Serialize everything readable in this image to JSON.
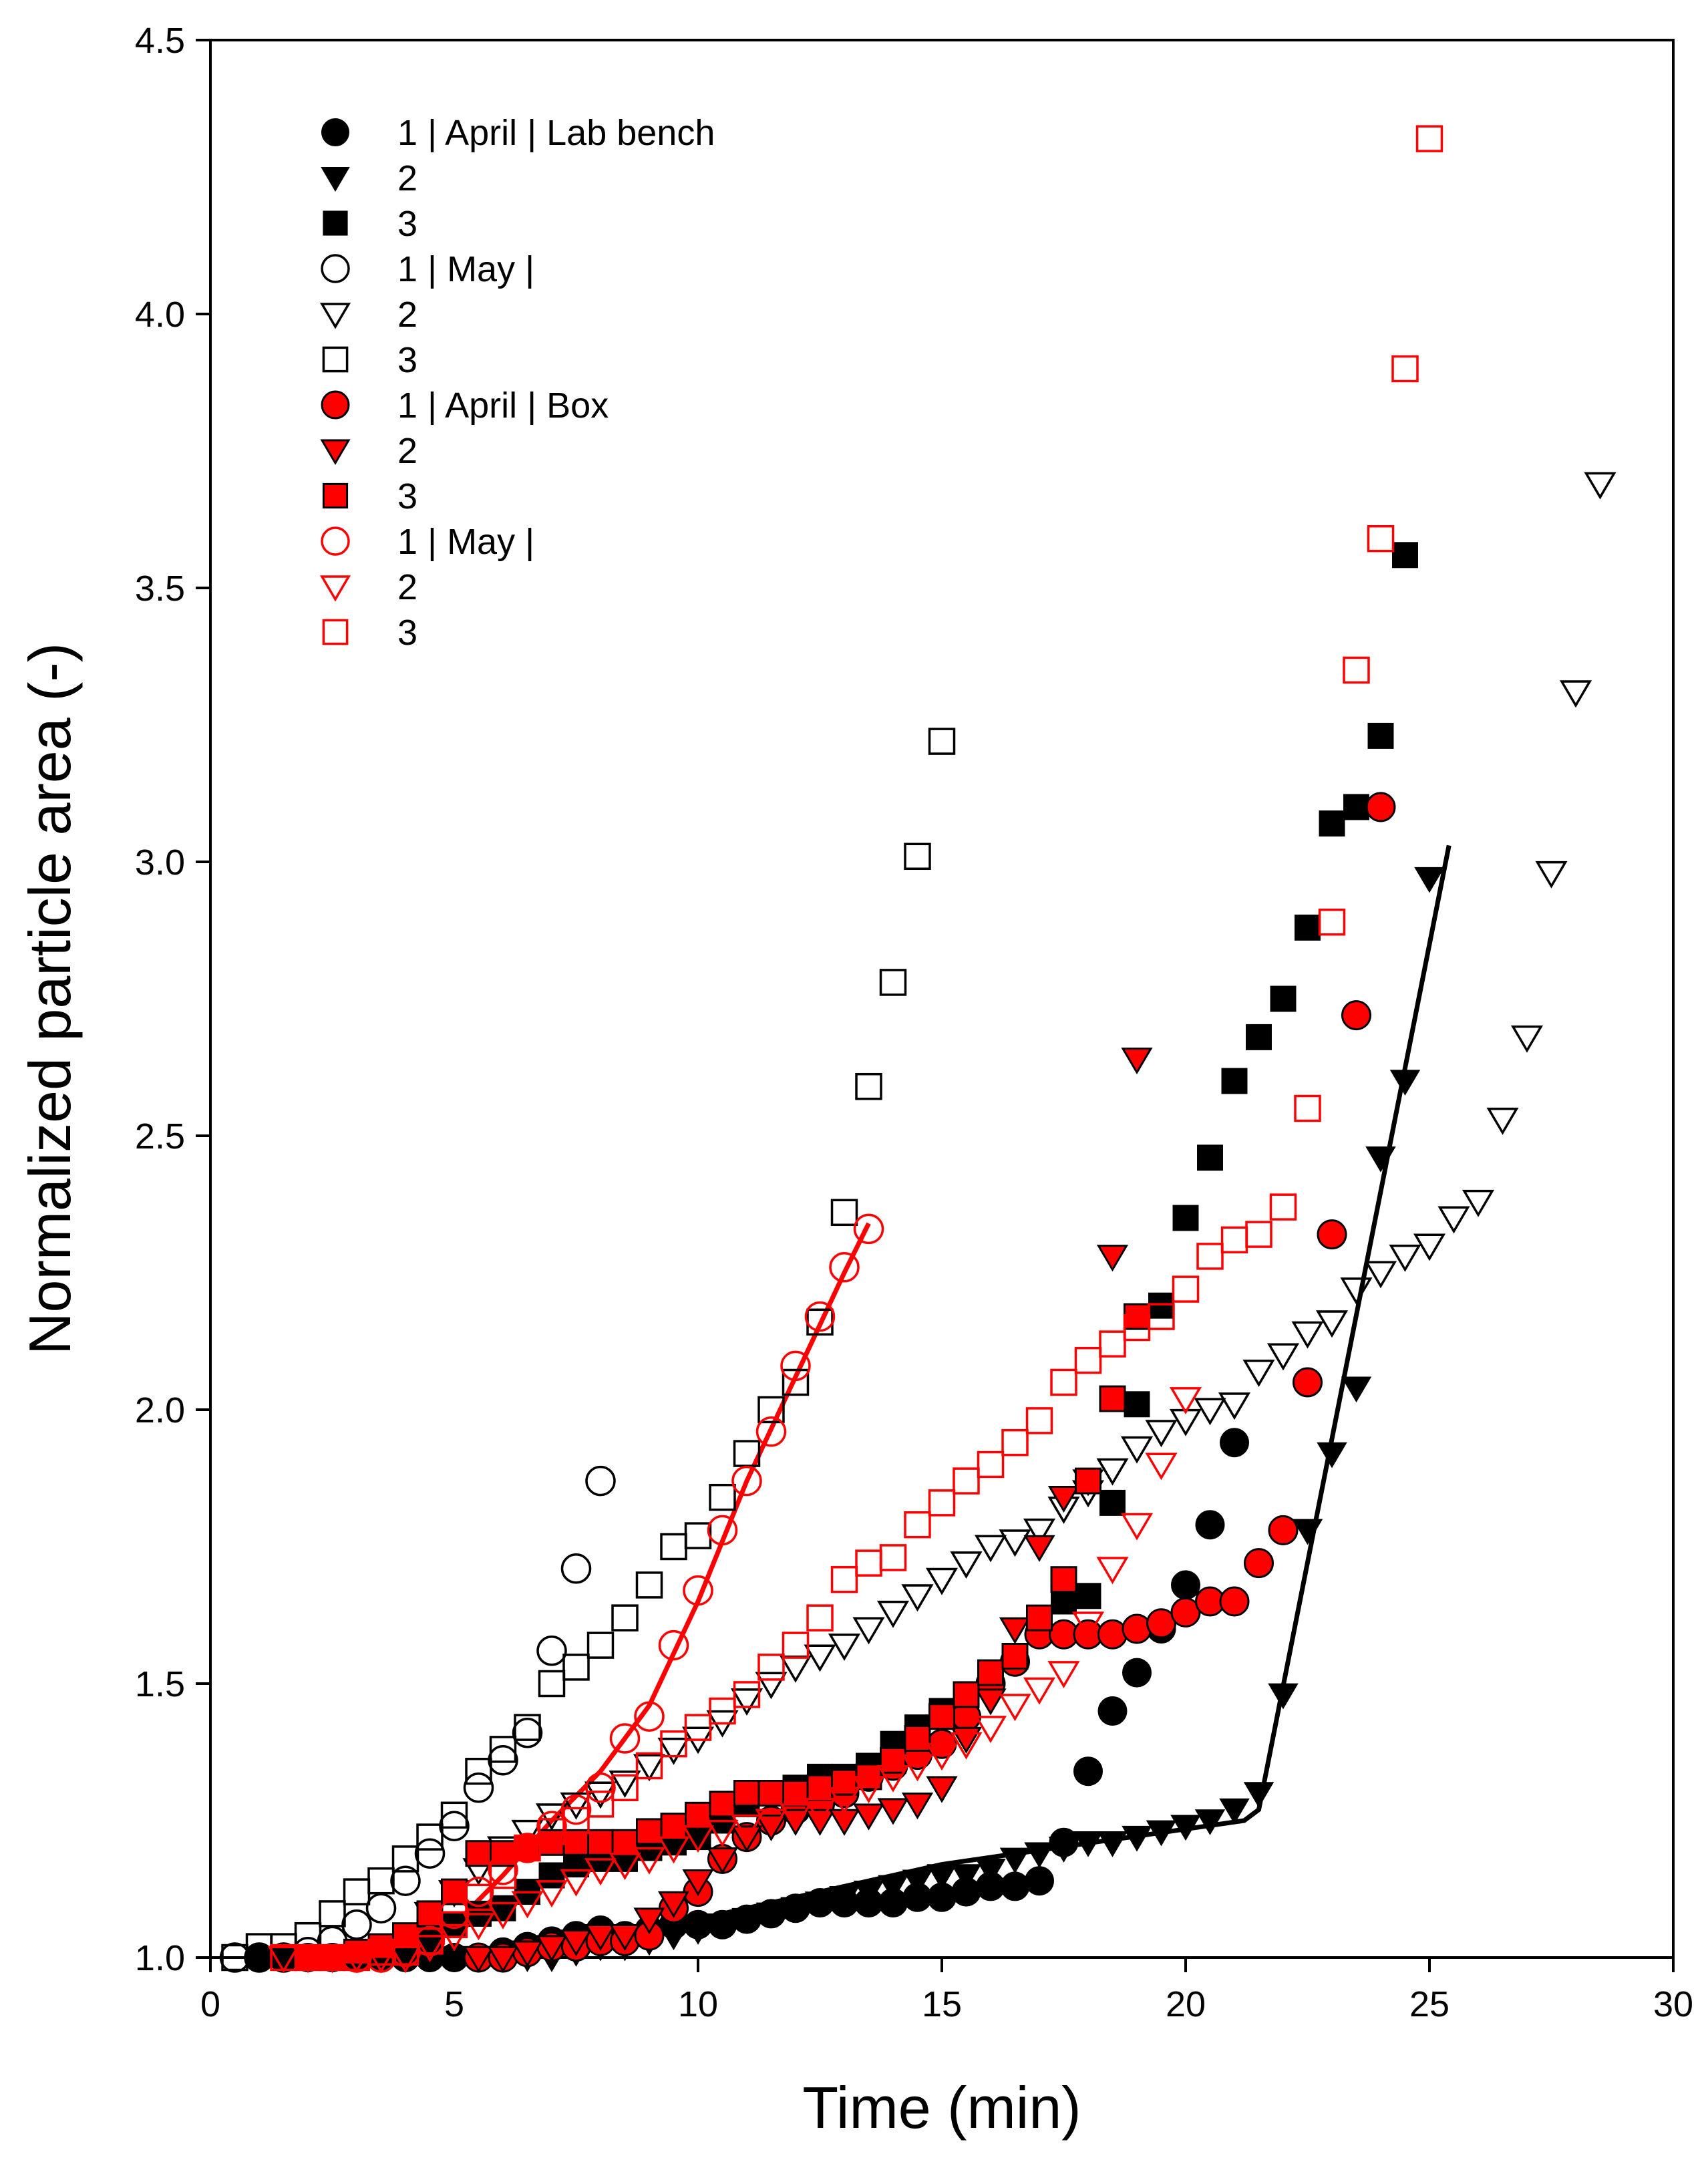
{
  "chart_data": {
    "type": "scatter",
    "title": "",
    "xlabel": "Time (min)",
    "ylabel": "Normalized particle area (-)",
    "xlim": [
      0,
      30
    ],
    "ylim": [
      1.0,
      4.5
    ],
    "xticks": [
      "0",
      "5",
      "10",
      "15",
      "20",
      "25",
      "30"
    ],
    "yticks": [
      "1.0",
      "1.5",
      "2.0",
      "2.5",
      "3.0",
      "3.5",
      "4.0",
      "4.5"
    ],
    "grid": false,
    "legend_position": "top-left",
    "series": [
      {
        "name": "1 | April | Lab bench",
        "marker": "circle",
        "color": "#000000",
        "fill": "black",
        "x": [
          1,
          1.5,
          2,
          2.5,
          3,
          3.5,
          4,
          4.5,
          5,
          5.5,
          6,
          6.5,
          7,
          7.5,
          8,
          8.5,
          9,
          9.5,
          10,
          10.5,
          11,
          11.5,
          12,
          12.5,
          13,
          13.5,
          14,
          14.5,
          15,
          15.5,
          16,
          16.5,
          17,
          17.5,
          18,
          18.5,
          19,
          19.5,
          20,
          20.5,
          21
        ],
        "y": [
          1.0,
          1.0,
          1.0,
          1.0,
          1.0,
          1.0,
          1.0,
          1.0,
          1.0,
          1.0,
          1.01,
          1.02,
          1.03,
          1.04,
          1.05,
          1.04,
          1.05,
          1.06,
          1.06,
          1.06,
          1.07,
          1.08,
          1.09,
          1.1,
          1.1,
          1.1,
          1.1,
          1.11,
          1.11,
          1.12,
          1.13,
          1.13,
          1.14,
          1.21,
          1.34,
          1.45,
          1.52,
          1.6,
          1.68,
          1.79,
          1.94
        ]
      },
      {
        "name": "2",
        "marker": "triangle-down",
        "color": "#000000",
        "fill": "black",
        "x": [
          1.5,
          2,
          2.5,
          3,
          3.5,
          4,
          4.5,
          5,
          5.5,
          6,
          6.5,
          7,
          7.5,
          8,
          8.5,
          9,
          9.5,
          10,
          10.5,
          11,
          11.5,
          12,
          12.5,
          13,
          13.5,
          14,
          14.5,
          15,
          15.5,
          16,
          16.5,
          17,
          17.5,
          18,
          18.5,
          19,
          19.5,
          20,
          20.5,
          21,
          21.5,
          22,
          22.5,
          23,
          23.5,
          24,
          24.5,
          25
        ],
        "y": [
          1.0,
          1.0,
          1.0,
          1.0,
          1.0,
          1.0,
          1.0,
          1.0,
          1.0,
          1.0,
          1.0,
          1.0,
          1.01,
          1.02,
          1.02,
          1.03,
          1.04,
          1.05,
          1.06,
          1.07,
          1.08,
          1.09,
          1.1,
          1.11,
          1.12,
          1.13,
          1.14,
          1.15,
          1.15,
          1.16,
          1.18,
          1.19,
          1.2,
          1.21,
          1.21,
          1.22,
          1.23,
          1.24,
          1.25,
          1.27,
          1.3,
          1.48,
          1.78,
          1.92,
          2.04,
          2.46,
          2.6,
          2.97
        ]
      },
      {
        "name": "3",
        "marker": "square",
        "color": "#000000",
        "fill": "black",
        "x": [
          2.5,
          3,
          3.5,
          4,
          4.5,
          5,
          5.5,
          6,
          6.5,
          7,
          7.5,
          8,
          8.5,
          9,
          9.5,
          10,
          10.5,
          11,
          11.5,
          12,
          12.5,
          13,
          13.5,
          14,
          14.5,
          15,
          15.5,
          16,
          16.5,
          17,
          17.5,
          18,
          18.5,
          19,
          19.5,
          20,
          20.5,
          21,
          21.5,
          22,
          22.5,
          23,
          23.5,
          24,
          24.5
        ],
        "y": [
          1.0,
          1.0,
          1.01,
          1.02,
          1.04,
          1.06,
          1.08,
          1.09,
          1.12,
          1.15,
          1.17,
          1.18,
          1.18,
          1.2,
          1.21,
          1.22,
          1.25,
          1.28,
          1.3,
          1.31,
          1.33,
          1.33,
          1.35,
          1.39,
          1.42,
          1.45,
          1.47,
          1.52,
          1.55,
          1.62,
          1.65,
          1.66,
          1.83,
          2.01,
          2.19,
          2.35,
          2.46,
          2.6,
          2.68,
          2.75,
          2.88,
          3.07,
          3.1,
          3.23,
          3.56
        ]
      },
      {
        "name": "1 | May |",
        "marker": "circle",
        "color": "#000000",
        "fill": "none",
        "x": [
          0.5,
          1,
          1.5,
          2,
          2.5,
          3,
          3.5,
          4,
          4.5,
          5,
          5.5,
          6,
          6.5,
          7,
          7.5,
          8
        ],
        "y": [
          1.0,
          1.0,
          1.0,
          1.01,
          1.03,
          1.06,
          1.09,
          1.14,
          1.19,
          1.24,
          1.31,
          1.36,
          1.41,
          1.56,
          1.71,
          1.87
        ]
      },
      {
        "name": "2",
        "marker": "triangle-down",
        "color": "#000000",
        "fill": "none",
        "x": [
          4.5,
          5,
          5.5,
          6,
          6.5,
          7,
          7.5,
          8,
          8.5,
          9,
          9.5,
          10,
          10.5,
          11,
          11.5,
          12,
          12.5,
          13,
          13.5,
          14,
          14.5,
          15,
          15.5,
          16,
          16.5,
          17,
          17.5,
          18,
          18.5,
          19,
          19.5,
          20,
          20.5,
          21,
          21.5,
          22,
          22.5,
          23,
          23.5,
          24,
          24.5,
          25,
          25.5,
          26,
          26.5,
          27,
          27.5,
          28,
          28.5
        ],
        "y": [
          1.08,
          1.12,
          1.16,
          1.2,
          1.23,
          1.26,
          1.28,
          1.3,
          1.32,
          1.35,
          1.38,
          1.4,
          1.43,
          1.47,
          1.5,
          1.53,
          1.55,
          1.57,
          1.6,
          1.63,
          1.66,
          1.69,
          1.72,
          1.75,
          1.76,
          1.78,
          1.82,
          1.85,
          1.89,
          1.93,
          1.96,
          1.98,
          2.0,
          2.01,
          2.07,
          2.1,
          2.14,
          2.16,
          2.22,
          2.25,
          2.28,
          2.3,
          2.35,
          2.38,
          2.53,
          2.68,
          2.98,
          3.31,
          3.69
        ]
      },
      {
        "name": "3",
        "marker": "square",
        "color": "#000000",
        "fill": "none",
        "x": [
          0.5,
          1,
          1.5,
          2,
          2.5,
          3,
          3.5,
          4,
          4.5,
          5,
          5.5,
          6,
          6.5,
          7,
          7.5,
          8,
          8.5,
          9,
          9.5,
          10,
          10.5,
          11,
          11.5,
          12,
          12.5,
          13,
          13.5,
          14,
          14.5,
          15
        ],
        "y": [
          1.0,
          1.02,
          1.02,
          1.04,
          1.08,
          1.12,
          1.14,
          1.18,
          1.22,
          1.26,
          1.34,
          1.38,
          1.42,
          1.5,
          1.53,
          1.57,
          1.62,
          1.68,
          1.75,
          1.77,
          1.84,
          1.92,
          2.0,
          2.05,
          2.16,
          2.36,
          2.59,
          2.78,
          3.01,
          3.22
        ]
      },
      {
        "name": "1 | April | Box",
        "marker": "circle",
        "color": "#ff0000",
        "fill": "red-black-edge",
        "x": [
          5.5,
          6,
          6.5,
          7,
          7.5,
          8,
          8.5,
          9,
          9.5,
          10,
          10.5,
          11,
          11.5,
          12,
          12.5,
          13,
          13.5,
          14,
          14.5,
          15,
          15.5,
          16,
          16.5,
          17,
          17.5,
          18,
          18.5,
          19,
          19.5,
          20,
          20.5,
          21,
          21.5,
          22,
          22.5,
          23,
          23.5,
          24
        ],
        "y": [
          1.0,
          1.0,
          1.01,
          1.02,
          1.02,
          1.03,
          1.03,
          1.04,
          1.09,
          1.12,
          1.18,
          1.22,
          1.25,
          1.27,
          1.28,
          1.3,
          1.33,
          1.35,
          1.37,
          1.39,
          1.44,
          1.5,
          1.54,
          1.59,
          1.59,
          1.59,
          1.59,
          1.6,
          1.61,
          1.63,
          1.65,
          1.65,
          1.72,
          1.78,
          2.05,
          2.32,
          2.72,
          3.1
        ]
      },
      {
        "name": "2",
        "marker": "triangle-down",
        "color": "#ff0000",
        "fill": "red-black-edge",
        "x": [
          5.5,
          6,
          6.5,
          7,
          7.5,
          8,
          8.5,
          9,
          9.5,
          10,
          10.5,
          11,
          11.5,
          12,
          12.5,
          13,
          13.5,
          14,
          14.5,
          15,
          15.5,
          16,
          16.5,
          17,
          17.5,
          18,
          18.5,
          19
        ],
        "y": [
          1.0,
          1.0,
          1.01,
          1.02,
          1.03,
          1.04,
          1.04,
          1.07,
          1.1,
          1.14,
          1.18,
          1.22,
          1.24,
          1.25,
          1.25,
          1.25,
          1.26,
          1.27,
          1.28,
          1.31,
          1.4,
          1.47,
          1.6,
          1.75,
          1.84,
          1.87,
          2.28,
          2.64
        ]
      },
      {
        "name": "3",
        "marker": "square",
        "color": "#ff0000",
        "fill": "red-black-edge",
        "x": [
          2,
          2.5,
          3,
          3.5,
          4,
          4.5,
          5,
          5.5,
          6,
          6.5,
          7,
          7.5,
          8,
          8.5,
          9,
          9.5,
          10,
          10.5,
          11,
          11.5,
          12,
          12.5,
          13,
          13.5,
          14,
          14.5,
          15,
          15.5,
          16,
          16.5,
          17,
          17.5,
          18,
          18.5,
          19
        ],
        "y": [
          1.0,
          1.0,
          1.01,
          1.02,
          1.04,
          1.08,
          1.12,
          1.19,
          1.19,
          1.2,
          1.21,
          1.21,
          1.21,
          1.21,
          1.23,
          1.24,
          1.26,
          1.28,
          1.3,
          1.3,
          1.3,
          1.31,
          1.32,
          1.33,
          1.36,
          1.4,
          1.44,
          1.48,
          1.52,
          1.55,
          1.62,
          1.69,
          1.87,
          2.02,
          2.17
        ]
      },
      {
        "name": "1 | May |",
        "marker": "circle",
        "color": "#ff0000",
        "fill": "none",
        "x": [
          3,
          3.5,
          4,
          4.5,
          5,
          5.5,
          6,
          6.5,
          7,
          7.5,
          8,
          8.5,
          9,
          9.5,
          10,
          10.5,
          11,
          11.5,
          12,
          12.5,
          13,
          13.5
        ],
        "y": [
          1.0,
          1.0,
          1.01,
          1.03,
          1.08,
          1.12,
          1.16,
          1.2,
          1.24,
          1.27,
          1.31,
          1.4,
          1.44,
          1.57,
          1.67,
          1.78,
          1.87,
          1.96,
          2.08,
          2.17,
          2.26,
          2.33
        ]
      },
      {
        "name": "2",
        "marker": "triangle-down",
        "color": "#ff0000",
        "fill": "none",
        "x": [
          1.5,
          2,
          2.5,
          3,
          3.5,
          4,
          4.5,
          5,
          5.5,
          6,
          6.5,
          7,
          7.5,
          8,
          8.5,
          9,
          9.5,
          10,
          10.5,
          11,
          11.5,
          12,
          12.5,
          13,
          13.5,
          14,
          14.5,
          15,
          15.5,
          16,
          16.5,
          17,
          17.5,
          18,
          18.5,
          19,
          19.5,
          20
        ],
        "y": [
          1.0,
          1.0,
          1.0,
          1.0,
          1.0,
          1.0,
          1.02,
          1.04,
          1.06,
          1.08,
          1.1,
          1.12,
          1.14,
          1.16,
          1.17,
          1.18,
          1.2,
          1.22,
          1.23,
          1.24,
          1.25,
          1.26,
          1.27,
          1.29,
          1.31,
          1.33,
          1.35,
          1.37,
          1.39,
          1.42,
          1.46,
          1.49,
          1.52,
          1.61,
          1.71,
          1.79,
          1.9,
          2.02
        ]
      },
      {
        "name": "3",
        "marker": "square",
        "color": "#ff0000",
        "fill": "none",
        "x": [
          1.5,
          2,
          2.5,
          3,
          3.5,
          4,
          4.5,
          5,
          5.5,
          6,
          6.5,
          7,
          7.5,
          8,
          8.5,
          9,
          9.5,
          10,
          10.5,
          11,
          11.5,
          12,
          12.5,
          13,
          13.5,
          14,
          14.5,
          15,
          15.5,
          16,
          16.5,
          17,
          17.5,
          18,
          18.5,
          19,
          19.5,
          20,
          20.5,
          21,
          21.5,
          22,
          22.5,
          23,
          23.5,
          24,
          24.5,
          25
        ],
        "y": [
          1.0,
          1.0,
          1.0,
          1.0,
          1.01,
          1.01,
          1.03,
          1.06,
          1.11,
          1.15,
          1.2,
          1.23,
          1.25,
          1.28,
          1.31,
          1.35,
          1.39,
          1.42,
          1.45,
          1.48,
          1.53,
          1.57,
          1.62,
          1.69,
          1.72,
          1.73,
          1.79,
          1.83,
          1.87,
          1.9,
          1.94,
          1.98,
          2.05,
          2.09,
          2.12,
          2.15,
          2.17,
          2.22,
          2.28,
          2.31,
          2.32,
          2.37,
          2.55,
          2.89,
          3.35,
          3.59,
          3.9,
          4.32
        ]
      }
    ],
    "fit_lines": [
      {
        "color": "#ff0000",
        "x": [
          5,
          6,
          7,
          8,
          9,
          10,
          11,
          12,
          13,
          13.5
        ],
        "y": [
          1.06,
          1.15,
          1.25,
          1.34,
          1.46,
          1.65,
          1.87,
          2.06,
          2.25,
          2.34
        ]
      },
      {
        "color": "#000000",
        "x": [
          5.5,
          10,
          15,
          21.2,
          21.5,
          25.4
        ],
        "y": [
          1.0,
          1.07,
          1.17,
          1.25,
          1.27,
          3.03
        ]
      }
    ]
  }
}
